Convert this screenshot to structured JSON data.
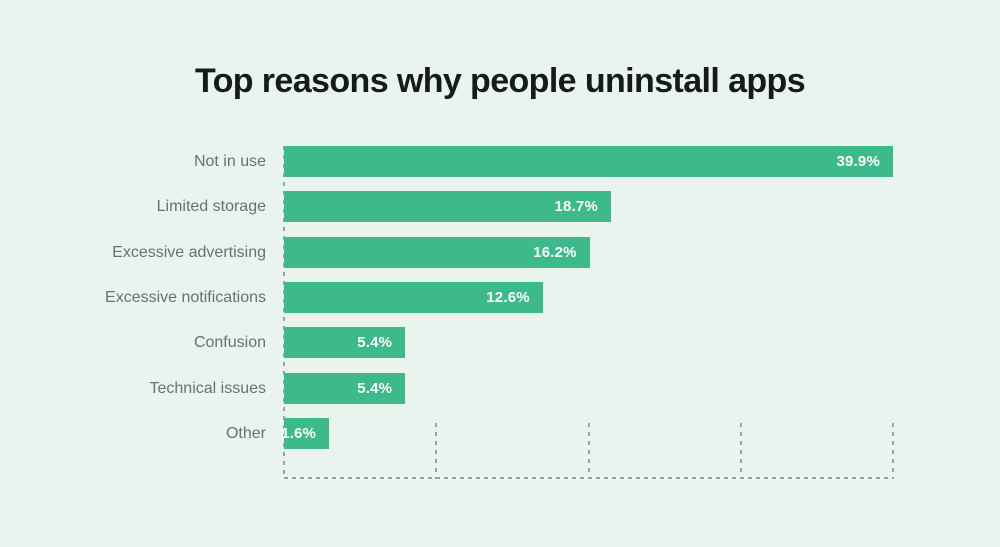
{
  "page": {
    "background": "#e9f4ef"
  },
  "title": "Top reasons why people uninstall apps",
  "chart_data": {
    "type": "bar",
    "orientation": "horizontal",
    "title": "Top reasons why people uninstall apps",
    "categories": [
      "Not in use",
      "Limited storage",
      "Excessive advertising",
      "Excessive notifications",
      "Confusion",
      "Technical issues",
      "Other"
    ],
    "values": [
      39.9,
      18.7,
      16.2,
      12.6,
      5.4,
      5.4,
      1.6
    ],
    "value_labels": [
      "39.9%",
      "18.7%",
      "16.2%",
      "12.6%",
      "5.4%",
      "5.4%",
      "1.6%"
    ],
    "bar_visual_widths_pct": [
      100,
      53.7,
      50.2,
      42.5,
      19.9,
      19.9,
      7.4
    ],
    "xlabel": "",
    "ylabel": "",
    "xlim": [
      0,
      40
    ],
    "gridlines_pct": [
      0,
      25,
      50,
      75,
      100
    ],
    "grid_style": "dashed",
    "legend": "none",
    "value_label_position": "inside-end",
    "colors": {
      "bar": "#3dba8c",
      "background": "#e9f4ef",
      "title_text": "#161b19",
      "category_label": "#67726e",
      "value_label": "#ffffff",
      "dashed_lines": "#9aa49f"
    }
  }
}
